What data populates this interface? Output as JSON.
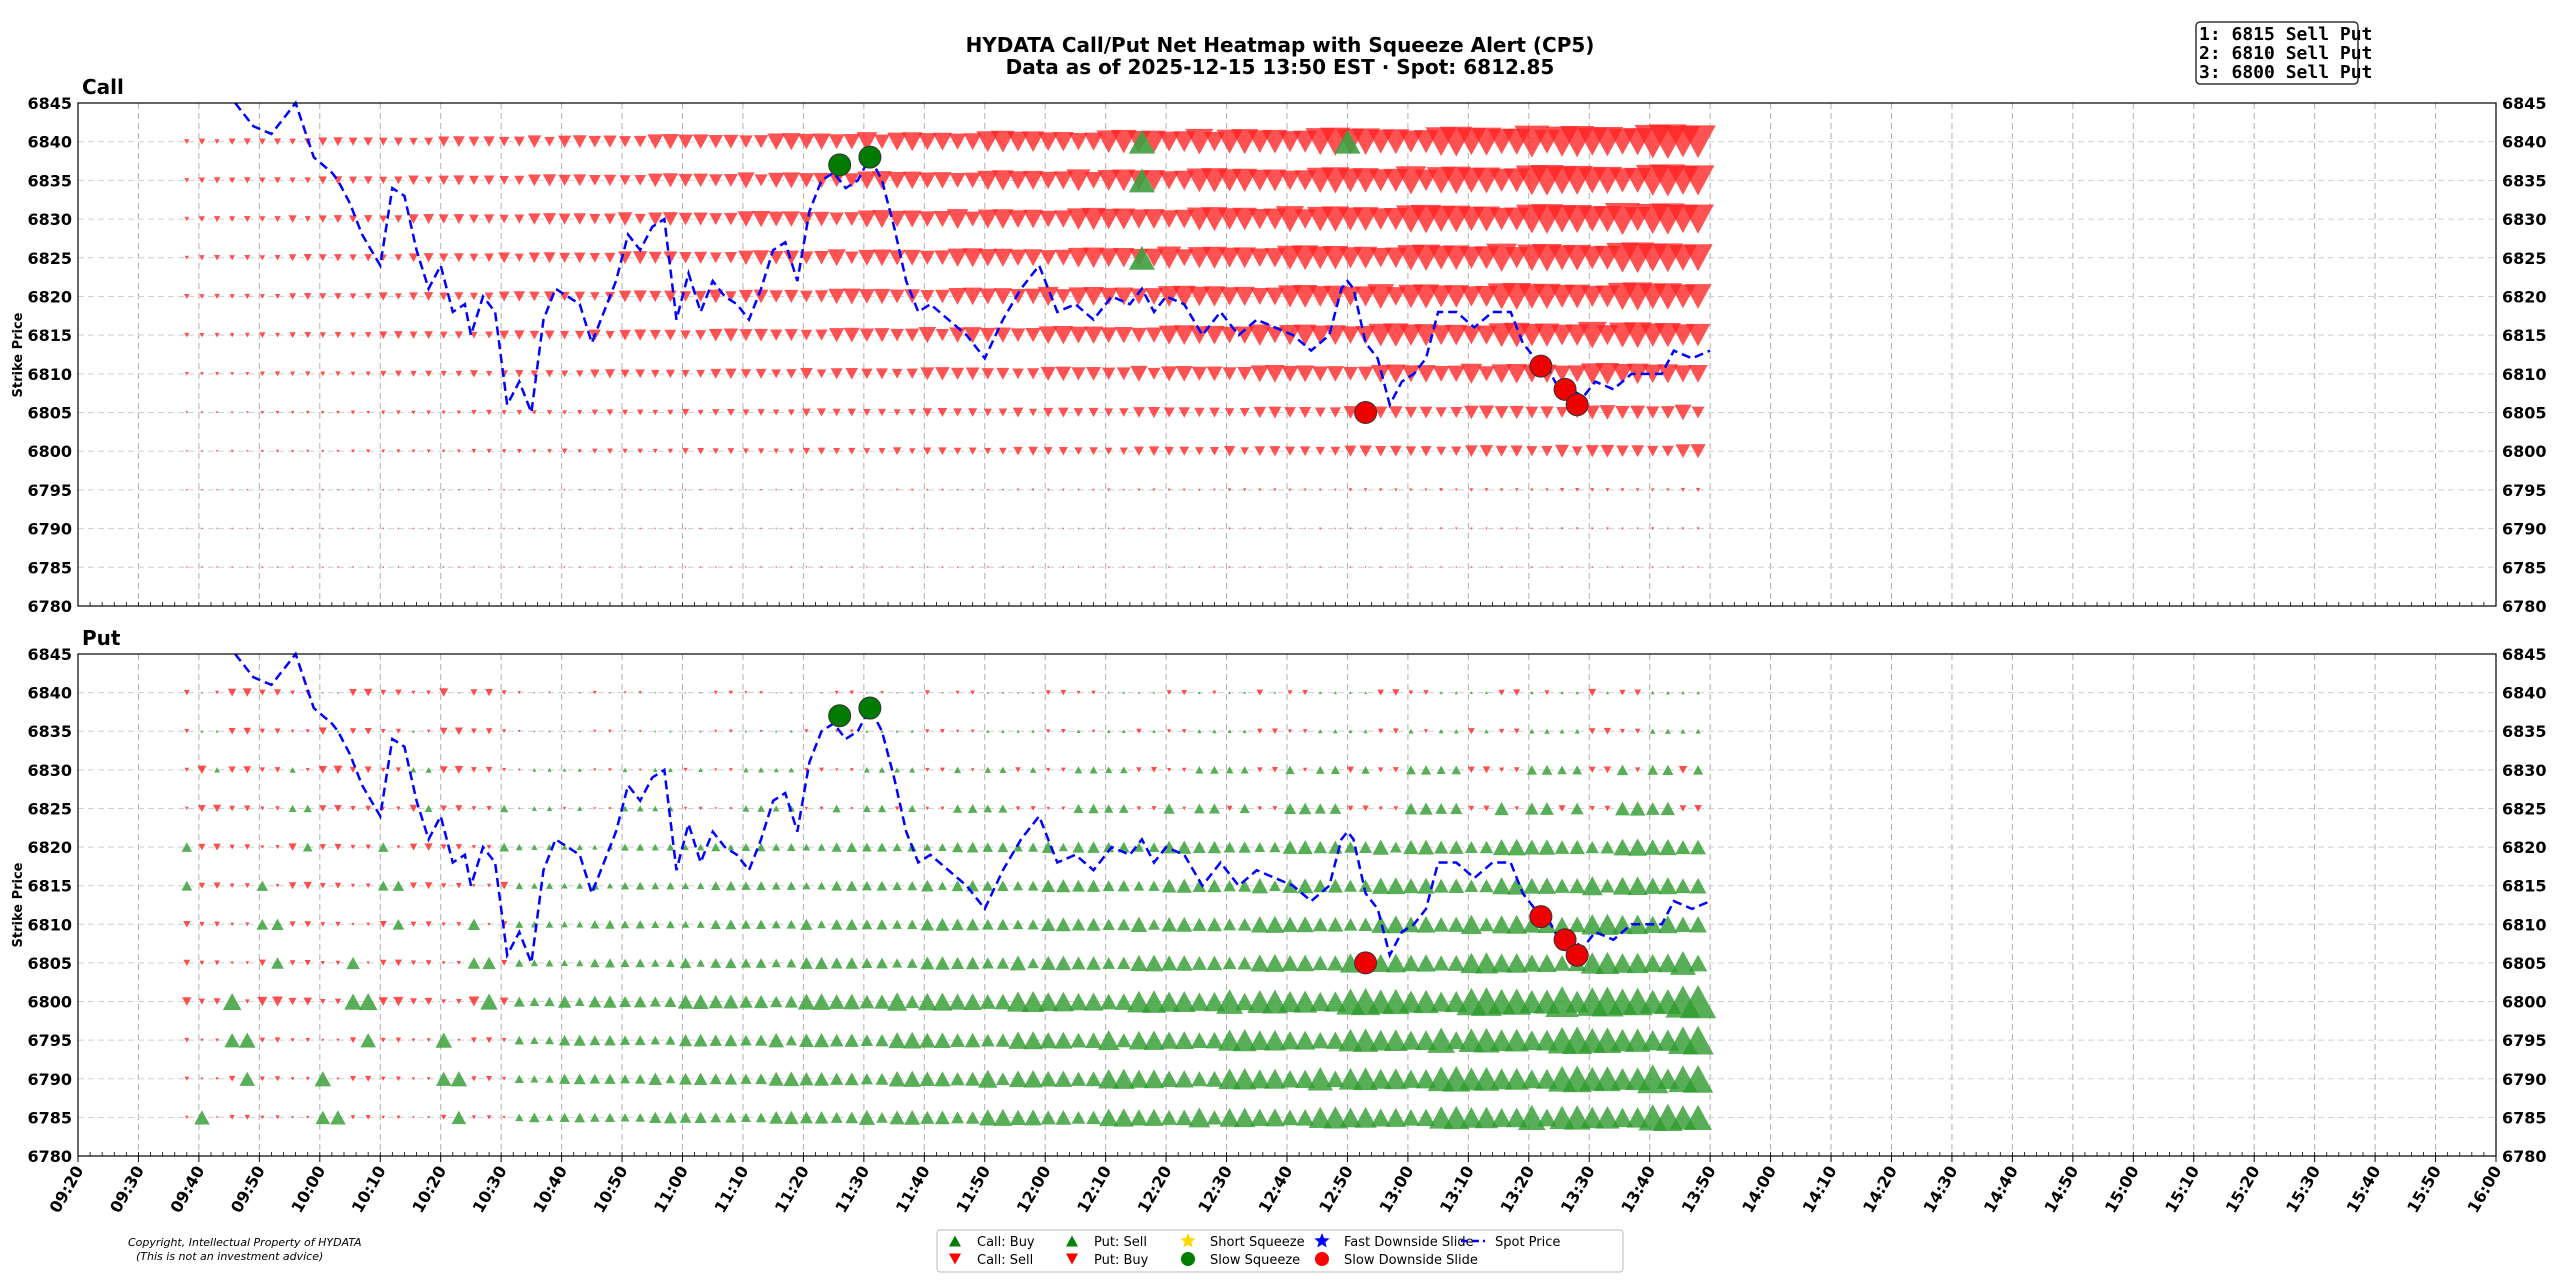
{
  "chart_data": {
    "type": "heatmap",
    "title": "HYDATA Call/Put Net Heatmap with Squeeze Alert (CP5)",
    "subtitle": "Data as of 2025-12-15 13:50 EST · Spot: 6812.85",
    "ylabel": "Strike Price",
    "ylim": [
      6780,
      6845
    ],
    "yticks": [
      "6845",
      "6840",
      "6835",
      "6830",
      "6825",
      "6820",
      "6815",
      "6810",
      "6805",
      "6800",
      "6795",
      "6790",
      "6785",
      "6780"
    ],
    "xlim": [
      "09:20",
      "16:00"
    ],
    "xticks": [
      "09:20",
      "09:30",
      "09:40",
      "09:50",
      "10:00",
      "10:10",
      "10:20",
      "10:30",
      "10:40",
      "10:50",
      "11:00",
      "11:10",
      "11:20",
      "11:30",
      "11:40",
      "11:50",
      "12:00",
      "12:10",
      "12:20",
      "12:30",
      "12:40",
      "12:50",
      "13:00",
      "13:10",
      "13:20",
      "13:30",
      "13:40",
      "13:50",
      "14:00",
      "14:10",
      "14:20",
      "14:30",
      "14:40",
      "14:50",
      "15:00",
      "15:10",
      "15:20",
      "15:30",
      "15:40",
      "15:50",
      "16:00"
    ],
    "panels": [
      {
        "name": "Call",
        "description": "Net call flow: red down-triangles (Call: Sell) dominate all strikes, growing in size toward 13:50; largest at 6815–6840.",
        "sell_intensity_by_strike": {
          "6840": 1.0,
          "6835": 0.95,
          "6830": 0.95,
          "6825": 0.9,
          "6820": 0.85,
          "6815": 0.8,
          "6810": 0.65,
          "6805": 0.45,
          "6800": 0.4,
          "6795": 0.12,
          "6790": 0.08,
          "6785": 0.05
        },
        "buy_markers": [
          {
            "time": "12:16",
            "strike": 6840
          },
          {
            "time": "12:16",
            "strike": 6835
          },
          {
            "time": "12:16",
            "strike": 6825
          },
          {
            "time": "12:50",
            "strike": 6840
          }
        ]
      },
      {
        "name": "Put",
        "description": "Net put flow: red (Put: Buy) early session 09:35–10:30 and at upper strikes; green up-triangles (Put: Sell) dominate lower strikes, growing toward 13:50.",
        "sell_intensity_by_strike": {
          "6840": 0.1,
          "6835": 0.15,
          "6830": 0.3,
          "6825": 0.4,
          "6820": 0.5,
          "6815": 0.55,
          "6810": 0.6,
          "6805": 0.65,
          "6800": 0.9,
          "6795": 0.8,
          "6790": 0.8,
          "6785": 0.75
        },
        "buy_intensity_by_strike": {
          "6840": 0.5,
          "6835": 0.45,
          "6830": 0.5,
          "6825": 0.45,
          "6820": 0.45,
          "6815": 0.45,
          "6810": 0.4,
          "6805": 0.4,
          "6800": 0.6,
          "6795": 0.35,
          "6790": 0.35,
          "6785": 0.3
        }
      }
    ],
    "series": [
      {
        "name": "Spot Price",
        "style": "dashed",
        "color": "#0000ff",
        "x": [
          "09:46",
          "09:49",
          "09:52",
          "09:54",
          "09:56",
          "09:59",
          "10:02",
          "10:03",
          "10:05",
          "10:07",
          "10:10",
          "10:12",
          "10:14",
          "10:16",
          "10:18",
          "10:20",
          "10:22",
          "10:24",
          "10:25",
          "10:27",
          "10:29",
          "10:31",
          "10:33",
          "10:35",
          "10:37",
          "10:39",
          "10:41",
          "10:43",
          "10:45",
          "10:47",
          "10:49",
          "10:51",
          "10:53",
          "10:55",
          "10:57",
          "10:59",
          "11:01",
          "11:03",
          "11:05",
          "11:07",
          "11:09",
          "11:11",
          "11:13",
          "11:15",
          "11:17",
          "11:19",
          "11:21",
          "11:23",
          "11:25",
          "11:27",
          "11:29",
          "11:31",
          "11:33",
          "11:35",
          "11:37",
          "11:39",
          "11:41",
          "11:44",
          "11:47",
          "11:50",
          "11:53",
          "11:56",
          "11:59",
          "12:02",
          "12:05",
          "12:08",
          "12:11",
          "12:14",
          "12:16",
          "12:18",
          "12:20",
          "12:23",
          "12:26",
          "12:29",
          "12:32",
          "12:35",
          "12:38",
          "12:41",
          "12:44",
          "12:47",
          "12:49",
          "12:50",
          "12:51",
          "12:53",
          "12:55",
          "12:57",
          "12:59",
          "13:01",
          "13:03",
          "13:05",
          "13:08",
          "13:11",
          "13:14",
          "13:17",
          "13:19",
          "13:21",
          "13:23",
          "13:25",
          "13:27",
          "13:29",
          "13:31",
          "13:34",
          "13:37",
          "13:40",
          "13:42",
          "13:44",
          "13:47",
          "13:50"
        ],
        "values": [
          6845,
          6842,
          6841,
          6843,
          6845,
          6838,
          6836,
          6835,
          6832,
          6828,
          6824,
          6834,
          6833,
          6826,
          6821,
          6824,
          6818,
          6819,
          6815,
          6820,
          6818,
          6806,
          6809,
          6805,
          6817,
          6821,
          6820,
          6819,
          6814,
          6818,
          6822,
          6828,
          6826,
          6829,
          6830,
          6817,
          6823,
          6818,
          6822,
          6820,
          6819,
          6817,
          6821,
          6826,
          6827,
          6822,
          6831,
          6835,
          6836,
          6834,
          6835,
          6838,
          6835,
          6829,
          6822,
          6818,
          6819,
          6817,
          6815,
          6812,
          6817,
          6821,
          6824,
          6818,
          6819,
          6817,
          6820,
          6819,
          6821,
          6818,
          6820,
          6819,
          6815,
          6818,
          6815,
          6817,
          6816,
          6815,
          6813,
          6815,
          6821,
          6822,
          6821,
          6814,
          6812,
          6806,
          6809,
          6810,
          6812,
          6818,
          6818,
          6816,
          6818,
          6818,
          6814,
          6812,
          6811,
          6808,
          6808,
          6807,
          6809,
          6808,
          6810,
          6810,
          6810,
          6813,
          6812,
          6813
        ]
      }
    ],
    "squeeze_alerts": [
      {
        "type": "Slow Squeeze",
        "time": "11:26",
        "value": 6837
      },
      {
        "type": "Slow Squeeze",
        "time": "11:31",
        "value": 6838
      },
      {
        "type": "Slow Downside Slide",
        "time": "12:53",
        "value": 6805
      },
      {
        "type": "Slow Downside Slide",
        "time": "13:22",
        "value": 6811
      },
      {
        "type": "Slow Downside Slide",
        "time": "13:26",
        "value": 6808
      },
      {
        "type": "Slow Downside Slide",
        "time": "13:28",
        "value": 6806
      }
    ],
    "legend": [
      {
        "label": "Call: Buy",
        "symbol": "up-triangle",
        "color": "#008000"
      },
      {
        "label": "Call: Sell",
        "symbol": "down-triangle",
        "color": "#ff0000"
      },
      {
        "label": "Put: Sell",
        "symbol": "up-triangle",
        "color": "#008000"
      },
      {
        "label": "Put: Buy",
        "symbol": "down-triangle",
        "color": "#ff0000"
      },
      {
        "label": "Short Squeeze",
        "symbol": "star",
        "color": "#ffd700"
      },
      {
        "label": "Slow Squeeze",
        "symbol": "circle",
        "color": "#008000"
      },
      {
        "label": "Fast Downside Slide",
        "symbol": "star",
        "color": "#0000ff"
      },
      {
        "label": "Slow Downside Slide",
        "symbol": "circle",
        "color": "#ff0000"
      },
      {
        "label": "Spot Price",
        "symbol": "dashed-line",
        "color": "#0000ff"
      }
    ],
    "legend_position": "bottom-center",
    "alert_box": [
      "1: 6815 Sell Put",
      "2: 6810 Sell Put",
      "3: 6800 Sell Put"
    ],
    "alert_box_position": "top-right",
    "copyright_lines": [
      "Copyright, Intellectual Property of HYDATA",
      "(This is not an investment advice)"
    ],
    "grid": true
  }
}
